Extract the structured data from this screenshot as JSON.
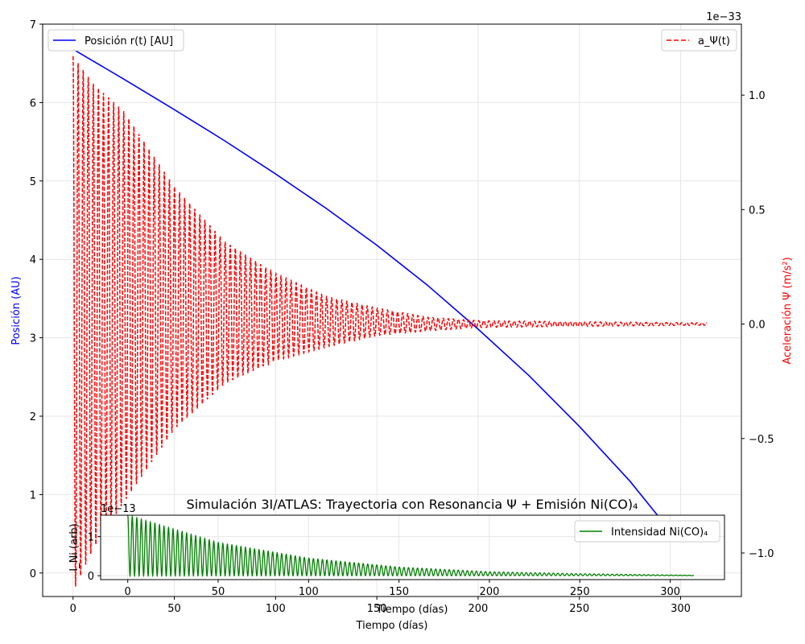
{
  "colors": {
    "position": "#0000ff",
    "accel": "#ff0000",
    "nickel": "#008000",
    "grid": "#e6e6e6",
    "axis": "#000000"
  },
  "chart_data": [
    {
      "id": "main",
      "type": "line",
      "title": "",
      "xlabel": "Tiempo (días)",
      "ylabel_left": "Posición (AU)",
      "ylabel_right": "Aceleración Ψ (m/s²)",
      "right_offset_label": "1e−33",
      "xlim": [
        -15,
        330
      ],
      "ylim_left": [
        -0.3,
        7.0
      ],
      "ylim_right": [
        -1.19,
        1.31
      ],
      "x_ticks": [
        0,
        50,
        100,
        150,
        200,
        250,
        300
      ],
      "y_ticks_left": [
        0,
        1,
        2,
        3,
        4,
        5,
        6,
        7
      ],
      "y_ticks_right": [
        -1.0,
        -0.5,
        0.0,
        0.5,
        1.0
      ],
      "y_tick_labels_right": [
        "−1.0",
        "−0.5",
        "0.0",
        "0.5",
        "1.0"
      ],
      "grid": true,
      "legend_left": "top-left",
      "legend_right": "top-right",
      "series": [
        {
          "name": "Posición r(t) [AU]",
          "axis": "left",
          "style": "solid",
          "x": [
            0,
            25,
            50,
            75,
            100,
            125,
            150,
            175,
            200,
            225,
            250,
            275,
            300,
            310
          ],
          "y": [
            6.68,
            6.3,
            5.91,
            5.51,
            5.09,
            4.65,
            4.18,
            3.67,
            3.11,
            2.52,
            1.87,
            1.17,
            0.37,
            0.0
          ]
        },
        {
          "name": "a_Ψ(t)",
          "axis": "right",
          "style": "dashed",
          "x_range": [
            0,
            313
          ],
          "envelope_x": [
            0,
            10,
            25,
            50,
            75,
            100,
            125,
            150,
            175,
            200,
            250,
            313
          ],
          "envelope_upper": [
            1.17,
            1.05,
            0.93,
            0.6,
            0.36,
            0.22,
            0.12,
            0.07,
            0.03,
            0.015,
            0.01,
            0.005
          ],
          "envelope_lower": [
            -1.17,
            -0.98,
            -0.78,
            -0.46,
            -0.26,
            -0.16,
            -0.1,
            -0.05,
            -0.03,
            -0.015,
            -0.01,
            -0.005
          ],
          "oscillations": 125
        }
      ]
    },
    {
      "id": "inset",
      "type": "line",
      "title": "Simulación 3I/ATLAS: Trayectoria con Resonancia Ψ + Emisión Ni(CO)₄",
      "xlabel": "Tiempo (días)",
      "ylabel": "I_Ni (arb)",
      "offset_label": "1e−13",
      "xlim": [
        -15,
        330
      ],
      "ylim": [
        -0.1,
        1.55
      ],
      "x_ticks": [
        0,
        50,
        100,
        150,
        200,
        250,
        300
      ],
      "y_ticks": [
        0,
        1
      ],
      "grid": true,
      "legend": "top-right",
      "series": [
        {
          "name": "Intensidad Ni(CO)₄",
          "style": "solid",
          "x_range": [
            0,
            313
          ],
          "envelope_x": [
            0,
            50,
            100,
            150,
            200,
            250,
            313
          ],
          "envelope_upper": [
            1.55,
            0.85,
            0.45,
            0.22,
            0.1,
            0.05,
            0.01
          ],
          "oscillations": 125
        }
      ]
    }
  ]
}
